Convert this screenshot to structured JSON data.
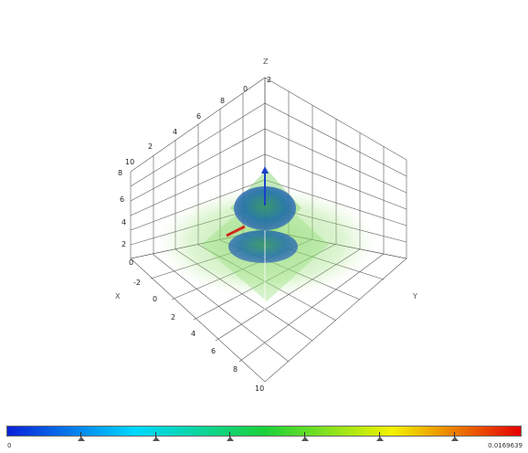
{
  "axes": {
    "x_label": "X",
    "y_label": "Y",
    "z_label": "Z",
    "x_ticks": [
      "-2",
      "0",
      "2",
      "4",
      "6",
      "8",
      "10"
    ],
    "z_ticks": [
      "0",
      "2",
      "4",
      "6",
      "8",
      "10"
    ],
    "z_top_ticks": [
      "2",
      "4",
      "6",
      "8",
      "0"
    ]
  },
  "colorbar": {
    "min_label": "0",
    "max_label": "0.0169639",
    "colors": [
      "#0a1fd8",
      "#00d8ff",
      "#19d13a",
      "#f2f200",
      "#e60000"
    ],
    "marker_positions": [
      0.145,
      0.29,
      0.435,
      0.58,
      0.725,
      0.87
    ]
  }
}
